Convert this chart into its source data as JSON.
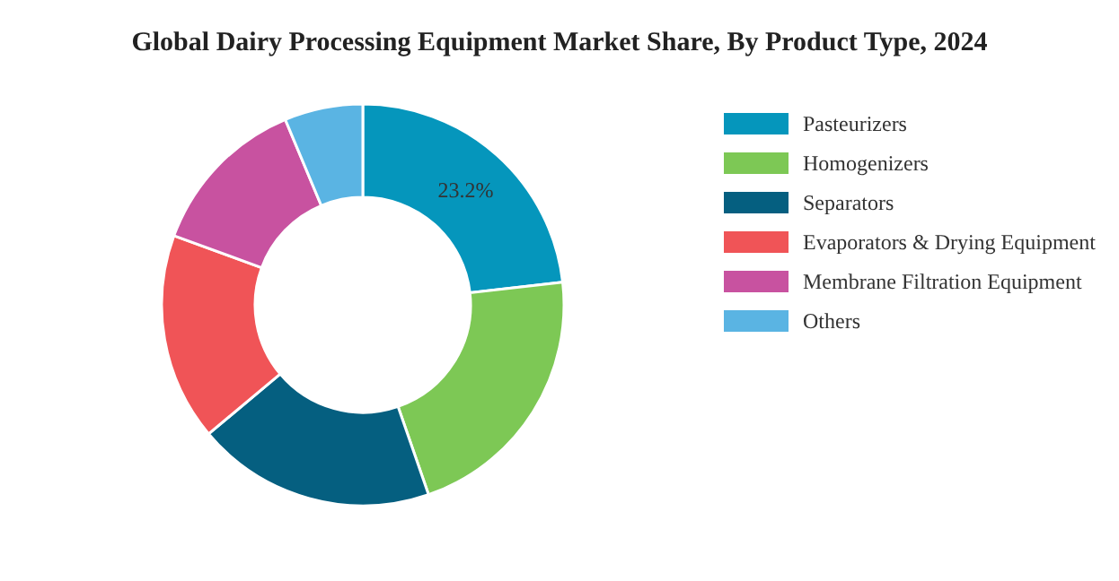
{
  "chart_data": {
    "type": "donut",
    "title": "Global Dairy Processing Equipment Market Share, By Product Type, 2024",
    "categories": [
      "Pasteurizers",
      "Homogenizers",
      "Separators",
      "Evaporators & Drying Equipment",
      "Membrane Filtration Equipment",
      "Others"
    ],
    "values": [
      23.2,
      21.5,
      19.2,
      16.7,
      13.1,
      6.3
    ],
    "colors": [
      "#0596bc",
      "#7dc855",
      "#055f80",
      "#f05457",
      "#c852a0",
      "#5ab4e3"
    ],
    "value_labels": [
      "23.2%",
      null,
      null,
      null,
      null,
      null
    ],
    "legend": "right"
  }
}
